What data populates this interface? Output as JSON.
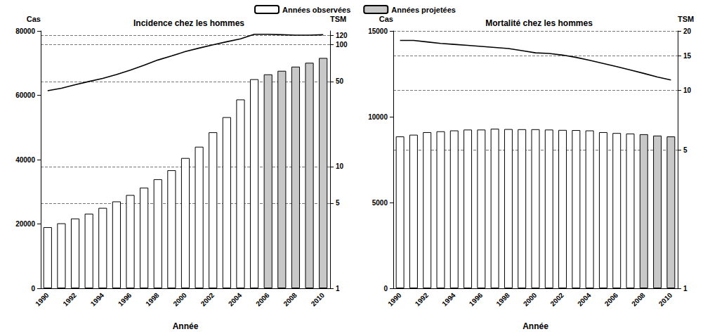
{
  "chart_data": [
    {
      "type": "bar",
      "title": "Incidence chez les hommes",
      "x_label": "Année",
      "y_label": "Cas",
      "y2_label": "TSM",
      "categories": [
        "1990",
        null,
        "1992",
        null,
        "1994",
        null,
        "1996",
        null,
        "1998",
        null,
        "2000",
        null,
        "2002",
        null,
        "2004",
        null,
        "2006",
        null,
        "2008",
        null,
        "2010"
      ],
      "series": [
        {
          "name": "Années observées",
          "color": "#ffffff",
          "values": [
            19000,
            20200,
            21700,
            23200,
            25000,
            27000,
            29000,
            31300,
            33900,
            36700,
            40500,
            44000,
            48500,
            53200,
            58700,
            65000,
            null,
            null,
            null,
            null,
            null
          ]
        },
        {
          "name": "Années projetées",
          "color": "#c8c8c8",
          "values": [
            null,
            null,
            null,
            null,
            null,
            null,
            null,
            null,
            null,
            null,
            null,
            null,
            null,
            null,
            null,
            null,
            66500,
            67600,
            68900,
            70100,
            71600
          ]
        },
        {
          "type": "line",
          "axis": "y2",
          "color": "#000000",
          "values": [
            42,
            44,
            47,
            50,
            53,
            57,
            62,
            68,
            75,
            81,
            88,
            94,
            100,
            106,
            112,
            122,
            122,
            121,
            120,
            120,
            121
          ]
        }
      ],
      "ylim": [
        0,
        80000
      ],
      "yticks": [
        0,
        20000,
        40000,
        60000,
        80000
      ],
      "y2lim": [
        1,
        130
      ],
      "y2ticks": [
        1,
        5,
        10,
        50,
        100,
        120
      ],
      "log": "y2",
      "grid": true,
      "legend": "top"
    },
    {
      "type": "bar",
      "title": "Mortalité chez les hommes",
      "x_label": "Année",
      "y_label": "Cas",
      "y2_label": "TSM",
      "categories": [
        "1990",
        null,
        "1992",
        null,
        "1994",
        null,
        "1996",
        null,
        "1998",
        null,
        "2000",
        null,
        "2002",
        null,
        "2004",
        null,
        "2006",
        null,
        "2008",
        null,
        "2010"
      ],
      "series": [
        {
          "name": "Années observées",
          "color": "#ffffff",
          "values": [
            8850,
            8950,
            9100,
            9150,
            9200,
            9250,
            9250,
            9300,
            9280,
            9270,
            9270,
            9250,
            9230,
            9220,
            9200,
            9100,
            9050,
            9020,
            null,
            null,
            null
          ]
        },
        {
          "name": "Années projetées",
          "color": "#c8c8c8",
          "values": [
            null,
            null,
            null,
            null,
            null,
            null,
            null,
            null,
            null,
            null,
            null,
            null,
            null,
            null,
            null,
            null,
            null,
            null,
            8980,
            8900,
            8850
          ]
        },
        {
          "type": "line",
          "axis": "y2",
          "color": "#000000",
          "values": [
            17.9,
            17.9,
            17.6,
            17.3,
            17.1,
            16.9,
            16.7,
            16.5,
            16.3,
            15.9,
            15.5,
            15.4,
            15.1,
            14.7,
            14.2,
            13.7,
            13.2,
            12.7,
            12.2,
            11.7,
            11.3
          ]
        }
      ],
      "ylim": [
        0,
        15000
      ],
      "yticks": [
        0,
        5000,
        10000,
        15000
      ],
      "y2lim": [
        1,
        20
      ],
      "y2ticks": [
        1,
        5,
        10,
        15,
        20
      ],
      "log": "y2",
      "grid": true
    }
  ]
}
